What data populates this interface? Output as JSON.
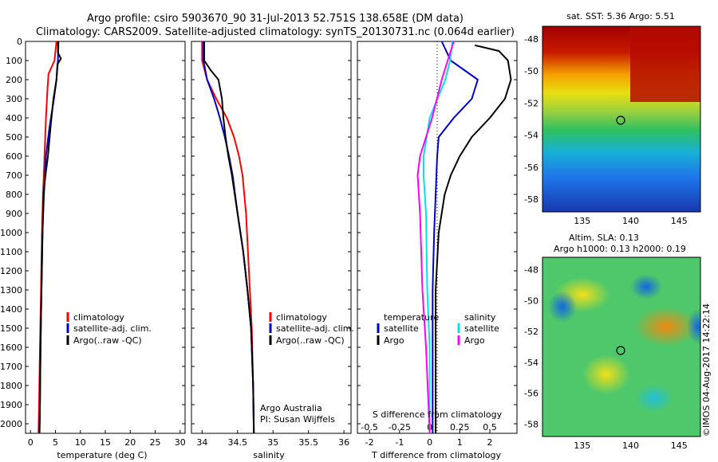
{
  "header": {
    "line1": "Argo profile: csiro 5903670_90 31-Jul-2013 52.751S 138.658E (DM data)",
    "line2": "Climatology: CARS2009. Satellite-adjusted climatology: synTS_20130731.nc (0.064d earlier)"
  },
  "colors": {
    "climatology": "#ff0000",
    "satellite": "#0000cc",
    "argo": "#000000",
    "satellite_salinity": "#00e5e5",
    "argo_salinity": "#ff00ff"
  },
  "depth_ticks": [
    "0",
    "100",
    "200",
    "300",
    "400",
    "500",
    "600",
    "700",
    "800",
    "900",
    "1000",
    "1100",
    "1200",
    "1300",
    "1400",
    "1500",
    "1600",
    "1700",
    "1800",
    "1900",
    "2000"
  ],
  "panels": {
    "temperature": {
      "xlabel": "temperature (deg C)",
      "xticks": [
        "0",
        "5",
        "10",
        "15",
        "20",
        "25",
        "30"
      ],
      "legend": [
        "climatology",
        "satellite-adj. clim.",
        "Argo(..raw -QC)"
      ]
    },
    "salinity": {
      "xlabel": "salinity",
      "xticks": [
        "34",
        "34.5",
        "35",
        "35.5",
        "36"
      ],
      "legend": [
        "climatology",
        "satellite-adj. clim.",
        "Argo(..raw -QC)"
      ],
      "note1": "Argo Australia",
      "note2": "PI: Susan Wijffels"
    },
    "difference": {
      "xlabel": "T difference from climatology",
      "xlabel_top": "S difference from climatology",
      "xticks_bottom": [
        "-2",
        "-1",
        "0",
        "1",
        "2"
      ],
      "xticks_top": [
        "-0.5",
        "-0.25",
        "0",
        "0.25",
        "0.5"
      ],
      "legend_head_t": "temperature",
      "legend_head_s": "salinity",
      "legend_t": [
        "satellite",
        "Argo"
      ],
      "legend_s": [
        "satellite",
        "Argo"
      ]
    }
  },
  "maps": {
    "sst": {
      "title": "sat. SST: 5.36 Argo: 5.51",
      "yticks": [
        "-48",
        "-50",
        "-52",
        "-54",
        "-56",
        "-58"
      ],
      "xticks": [
        "135",
        "140",
        "145"
      ]
    },
    "sla": {
      "title1": "Altim. SLA: 0.13",
      "title2": "Argo h1000: 0.13 h2000: 0.19",
      "yticks": [
        "-48",
        "-50",
        "-52",
        "-54",
        "-56",
        "-58"
      ],
      "xticks": [
        "135",
        "140",
        "145"
      ]
    }
  },
  "stamp": "©IMOS 04-Aug-2017 14:22:14",
  "chart_data": [
    {
      "type": "line",
      "xlabel": "temperature (deg C)",
      "ylabel": "",
      "xlim": [
        -1,
        31
      ],
      "ylim": [
        2050,
        0
      ],
      "series": [
        {
          "name": "climatology",
          "points": [
            [
              5.2,
              0
            ],
            [
              4.8,
              100
            ],
            [
              3.6,
              170
            ],
            [
              3.4,
              250
            ],
            [
              3.1,
              400
            ],
            [
              2.8,
              600
            ],
            [
              2.5,
              800
            ],
            [
              2.3,
              1000
            ],
            [
              2.1,
              1300
            ],
            [
              1.9,
              1600
            ],
            [
              1.7,
              1900
            ],
            [
              1.6,
              2050
            ]
          ]
        },
        {
          "name": "satellite-adj. clim.",
          "points": [
            [
              5.6,
              0
            ],
            [
              5.5,
              100
            ],
            [
              5.2,
              200
            ],
            [
              4.7,
              300
            ],
            [
              3.8,
              450
            ],
            [
              3.1,
              600
            ],
            [
              2.7,
              800
            ],
            [
              2.4,
              1000
            ],
            [
              2.2,
              1300
            ],
            [
              2.0,
              1600
            ],
            [
              1.9,
              1900
            ],
            [
              1.8,
              2050
            ]
          ]
        },
        {
          "name": "Argo(..raw -QC)",
          "points": [
            [
              5.5,
              0
            ],
            [
              5.5,
              60
            ],
            [
              6.1,
              90
            ],
            [
              5.4,
              120
            ],
            [
              5.2,
              200
            ],
            [
              4.6,
              300
            ],
            [
              4.0,
              450
            ],
            [
              3.5,
              600
            ],
            [
              3.0,
              700
            ],
            [
              2.6,
              800
            ],
            [
              2.4,
              1000
            ],
            [
              2.2,
              1300
            ],
            [
              2.0,
              1600
            ],
            [
              1.9,
              1900
            ],
            [
              1.8,
              2050
            ]
          ]
        }
      ]
    },
    {
      "type": "line",
      "xlabel": "salinity",
      "ylabel": "",
      "xlim": [
        33.85,
        36.1
      ],
      "ylim": [
        2050,
        0
      ],
      "series": [
        {
          "name": "climatology",
          "points": [
            [
              34.0,
              0
            ],
            [
              34.0,
              100
            ],
            [
              34.07,
              200
            ],
            [
              34.2,
              300
            ],
            [
              34.35,
              400
            ],
            [
              34.45,
              500
            ],
            [
              34.52,
              600
            ],
            [
              34.57,
              700
            ],
            [
              34.62,
              900
            ],
            [
              34.66,
              1200
            ],
            [
              34.7,
              1500
            ],
            [
              34.72,
              1800
            ],
            [
              34.73,
              2050
            ]
          ]
        },
        {
          "name": "satellite-adj. clim.",
          "points": [
            [
              34.02,
              0
            ],
            [
              34.02,
              100
            ],
            [
              34.07,
              200
            ],
            [
              34.17,
              300
            ],
            [
              34.25,
              400
            ],
            [
              34.32,
              500
            ],
            [
              34.38,
              600
            ],
            [
              34.43,
              700
            ],
            [
              34.5,
              900
            ],
            [
              34.58,
              1100
            ],
            [
              34.64,
              1300
            ],
            [
              34.69,
              1500
            ],
            [
              34.72,
              1800
            ],
            [
              34.73,
              2050
            ]
          ]
        },
        {
          "name": "Argo(..raw -QC)",
          "points": [
            [
              34.03,
              0
            ],
            [
              34.03,
              100
            ],
            [
              34.12,
              150
            ],
            [
              34.23,
              200
            ],
            [
              34.28,
              300
            ],
            [
              34.3,
              400
            ],
            [
              34.33,
              500
            ],
            [
              34.37,
              600
            ],
            [
              34.42,
              700
            ],
            [
              34.5,
              900
            ],
            [
              34.58,
              1100
            ],
            [
              34.64,
              1300
            ],
            [
              34.69,
              1500
            ],
            [
              34.72,
              1800
            ],
            [
              34.73,
              2050
            ]
          ]
        }
      ]
    },
    {
      "type": "line",
      "xlabel": "T difference from climatology",
      "ylabel": "",
      "xlim": [
        -2.4,
        2.9
      ],
      "ylim": [
        2050,
        0
      ],
      "series": [
        {
          "name": "satellite",
          "points": [
            [
              0.4,
              0
            ],
            [
              0.7,
              100
            ],
            [
              1.6,
              200
            ],
            [
              1.4,
              300
            ],
            [
              0.8,
              400
            ],
            [
              0.3,
              500
            ],
            [
              0.25,
              600
            ],
            [
              0.2,
              800
            ],
            [
              0.15,
              1000
            ],
            [
              0.1,
              1300
            ],
            [
              0.1,
              1600
            ],
            [
              0.1,
              1900
            ],
            [
              0.1,
              2050
            ]
          ]
        },
        {
          "name": "Argo",
          "points": [
            [
              1.5,
              20
            ],
            [
              2.3,
              50
            ],
            [
              2.6,
              100
            ],
            [
              2.7,
              200
            ],
            [
              2.5,
              300
            ],
            [
              2.0,
              400
            ],
            [
              1.4,
              500
            ],
            [
              1.0,
              600
            ],
            [
              0.7,
              700
            ],
            [
              0.5,
              800
            ],
            [
              0.3,
              1000
            ],
            [
              0.2,
              1300
            ],
            [
              0.2,
              1600
            ],
            [
              0.2,
              1900
            ],
            [
              0.2,
              2050
            ]
          ]
        }
      ]
    },
    {
      "type": "line",
      "xlabel": "S difference from climatology",
      "ylabel": "",
      "xlim": [
        -0.6,
        0.725
      ],
      "ylim": [
        2050,
        0
      ],
      "series": [
        {
          "name": "satellite",
          "points": [
            [
              0.19,
              0
            ],
            [
              0.17,
              100
            ],
            [
              0.13,
              200
            ],
            [
              0.0,
              400
            ],
            [
              -0.05,
              600
            ],
            [
              -0.05,
              700
            ],
            [
              -0.03,
              900
            ],
            [
              -0.02,
              1300
            ],
            [
              0.0,
              1600
            ],
            [
              0.0,
              1900
            ],
            [
              0.0,
              2050
            ]
          ]
        },
        {
          "name": "Argo",
          "points": [
            [
              0.2,
              0
            ],
            [
              0.15,
              100
            ],
            [
              0.1,
              200
            ],
            [
              0.02,
              400
            ],
            [
              -0.08,
              600
            ],
            [
              -0.1,
              700
            ],
            [
              -0.08,
              900
            ],
            [
              -0.06,
              1300
            ],
            [
              -0.03,
              1600
            ],
            [
              -0.01,
              1900
            ],
            [
              0.0,
              2050
            ]
          ]
        }
      ]
    }
  ]
}
